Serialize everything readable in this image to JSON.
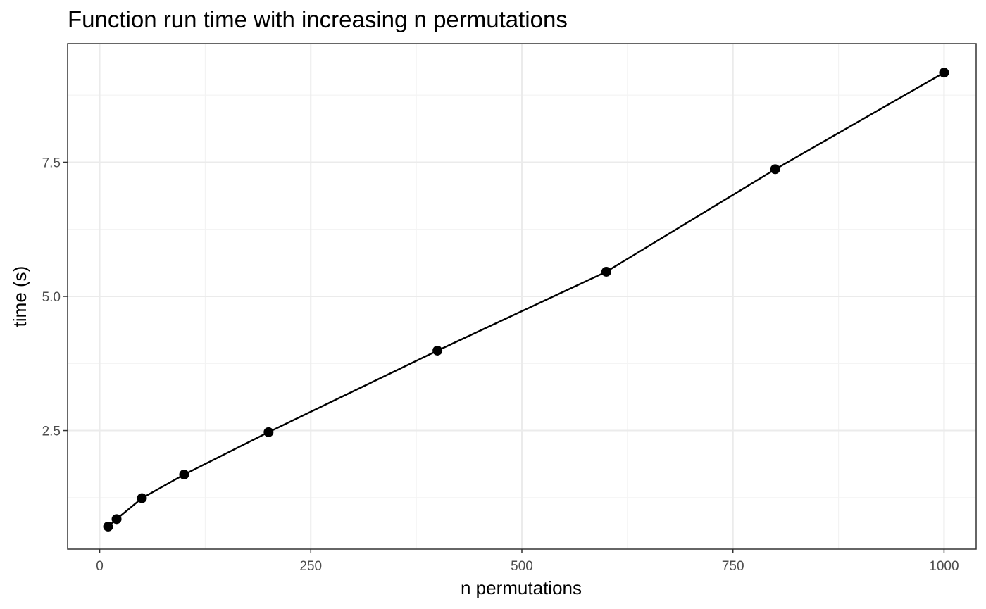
{
  "chart_data": {
    "type": "line",
    "title": "Function run time with increasing n permutations",
    "xlabel": "n permutations",
    "ylabel": "time (s)",
    "xlim": [
      -38,
      1038
    ],
    "ylim": [
      0.29,
      9.71
    ],
    "x_ticks": [
      0,
      250,
      500,
      750,
      1000
    ],
    "x_tick_labels": [
      "0",
      "250",
      "500",
      "750",
      "1000"
    ],
    "y_ticks": [
      2.5,
      5.0,
      7.5
    ],
    "y_tick_labels": [
      "2.5",
      "5.0",
      "7.5"
    ],
    "x_minor_ticks": [
      125,
      375,
      625,
      875
    ],
    "y_minor_ticks": [
      1.25,
      3.75,
      6.25,
      8.75
    ],
    "grid": true,
    "colors": {
      "series": "#000000",
      "grid": "#ebebeb",
      "panel_border": "#333333"
    },
    "series": [
      {
        "x": [
          10,
          20,
          50,
          100,
          200,
          400,
          600,
          800,
          1000
        ],
        "y": [
          0.71,
          0.85,
          1.24,
          1.68,
          2.47,
          3.99,
          5.46,
          7.37,
          9.17
        ]
      }
    ]
  }
}
